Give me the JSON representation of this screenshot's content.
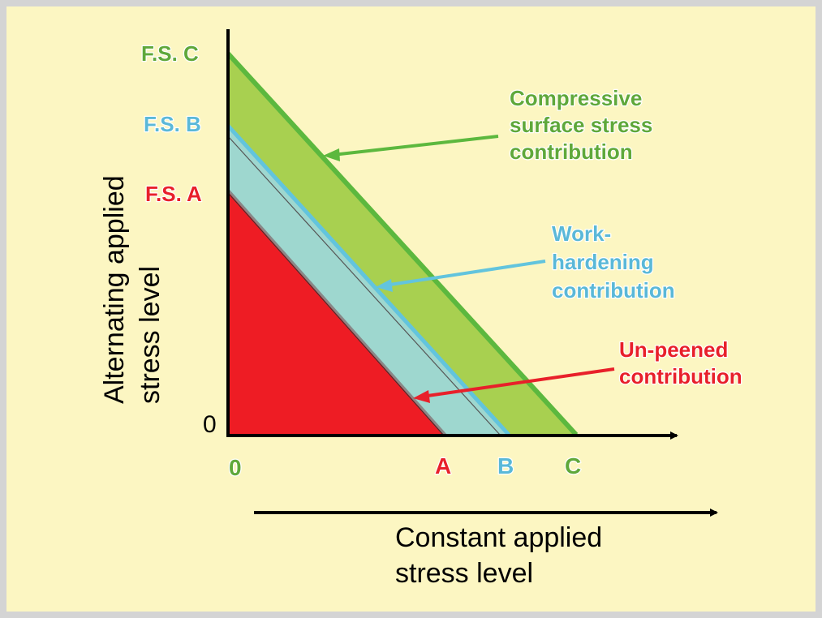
{
  "colors": {
    "background": "#fcf6c2",
    "border": "#d4d4d4",
    "unpeened": "#ee1c24",
    "workhardening": "#9ed7cf",
    "compressive": "#a8d050",
    "green_line": "#5cb83e",
    "blue_line": "#62c4dd",
    "red_text": "#e8202a",
    "green_text": "#5fa83a",
    "blue_text": "#5ab8d8"
  },
  "diagram": {
    "fs_labels": {
      "c": "F.S. C",
      "b": "F.S. B",
      "a": "F.S. A"
    },
    "y_zero": "0",
    "x_labels": {
      "zero": "0",
      "a": "A",
      "b": "B",
      "c": "C"
    },
    "y_axis_title": [
      "Alternating applied",
      "stress level"
    ],
    "x_axis_title": [
      "Constant applied",
      "stress level"
    ],
    "annotations": {
      "compressive": [
        "Compressive",
        "surface stress",
        "contribution"
      ],
      "work": [
        "Work-",
        "hardening",
        "contribution"
      ],
      "unpeened": [
        "Un-peened",
        "contribution"
      ]
    }
  }
}
